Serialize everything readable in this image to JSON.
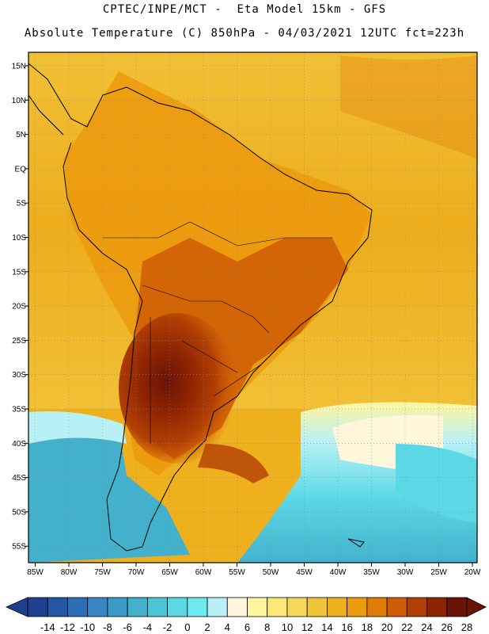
{
  "header": {
    "line1": "CPTEC/INPE/MCT -  Eta Model 15km - GFS",
    "line2": "Absolute Temperature (C) 850hPa - 04/03/2021 12UTC fct=223h"
  },
  "map": {
    "lat_labels": [
      "15N",
      "10N",
      "5N",
      "EQ",
      "5S",
      "10S",
      "15S",
      "20S",
      "25S",
      "30S",
      "35S",
      "40S",
      "45S",
      "50S",
      "55S"
    ],
    "lon_labels": [
      "85W",
      "80W",
      "75W",
      "70W",
      "65W",
      "60W",
      "55W",
      "50W",
      "45W",
      "40W",
      "35W",
      "30W",
      "25W",
      "20W"
    ]
  },
  "colorbar": {
    "labels": [
      "-14",
      "-12",
      "-10",
      "-8",
      "-6",
      "-4",
      "-2",
      "0",
      "2",
      "4",
      "6",
      "8",
      "10",
      "12",
      "14",
      "16",
      "18",
      "20",
      "22",
      "24",
      "26",
      "28"
    ],
    "colors": [
      "#1f3f8f",
      "#2456a4",
      "#2c6fb4",
      "#3a86c4",
      "#3b9ac6",
      "#44b1cc",
      "#4ac4d6",
      "#5ad8e6",
      "#6ee9f0",
      "#b8f0f6",
      "#fff6dc",
      "#fff6a0",
      "#fbe878",
      "#f7d85a",
      "#f2c43c",
      "#efb01e",
      "#ec9a0e",
      "#e27a08",
      "#cf5c05",
      "#b23f04",
      "#8e2402",
      "#6a1408"
    ]
  }
}
